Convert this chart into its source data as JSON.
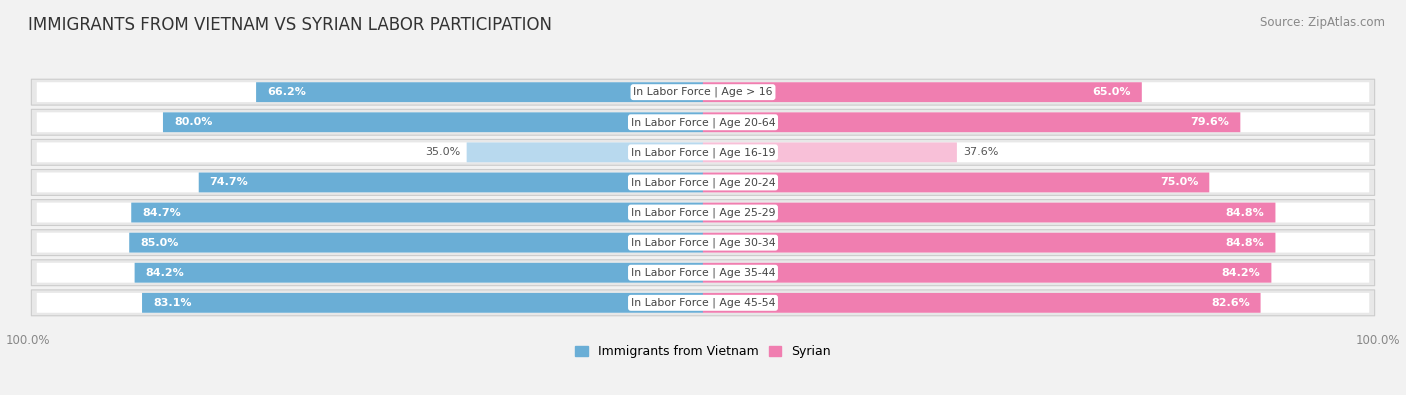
{
  "title": "IMMIGRANTS FROM VIETNAM VS SYRIAN LABOR PARTICIPATION",
  "source": "Source: ZipAtlas.com",
  "categories": [
    "In Labor Force | Age > 16",
    "In Labor Force | Age 20-64",
    "In Labor Force | Age 16-19",
    "In Labor Force | Age 20-24",
    "In Labor Force | Age 25-29",
    "In Labor Force | Age 30-34",
    "In Labor Force | Age 35-44",
    "In Labor Force | Age 45-54"
  ],
  "vietnam_values": [
    66.2,
    80.0,
    35.0,
    74.7,
    84.7,
    85.0,
    84.2,
    83.1
  ],
  "syrian_values": [
    65.0,
    79.6,
    37.6,
    75.0,
    84.8,
    84.8,
    84.2,
    82.6
  ],
  "vietnam_color_dark": "#6aaed6",
  "vietnam_color_light": "#b8d9ee",
  "syrian_color_dark": "#f07eb0",
  "syrian_color_light": "#f8c0d8",
  "row_bg_color": "#e8e8e8",
  "bar_inner_bg": "#ffffff",
  "background_color": "#f2f2f2",
  "title_fontsize": 12,
  "value_fontsize": 8,
  "cat_fontsize": 7.8,
  "tick_fontsize": 8.5,
  "source_fontsize": 8.5,
  "legend_fontsize": 9
}
